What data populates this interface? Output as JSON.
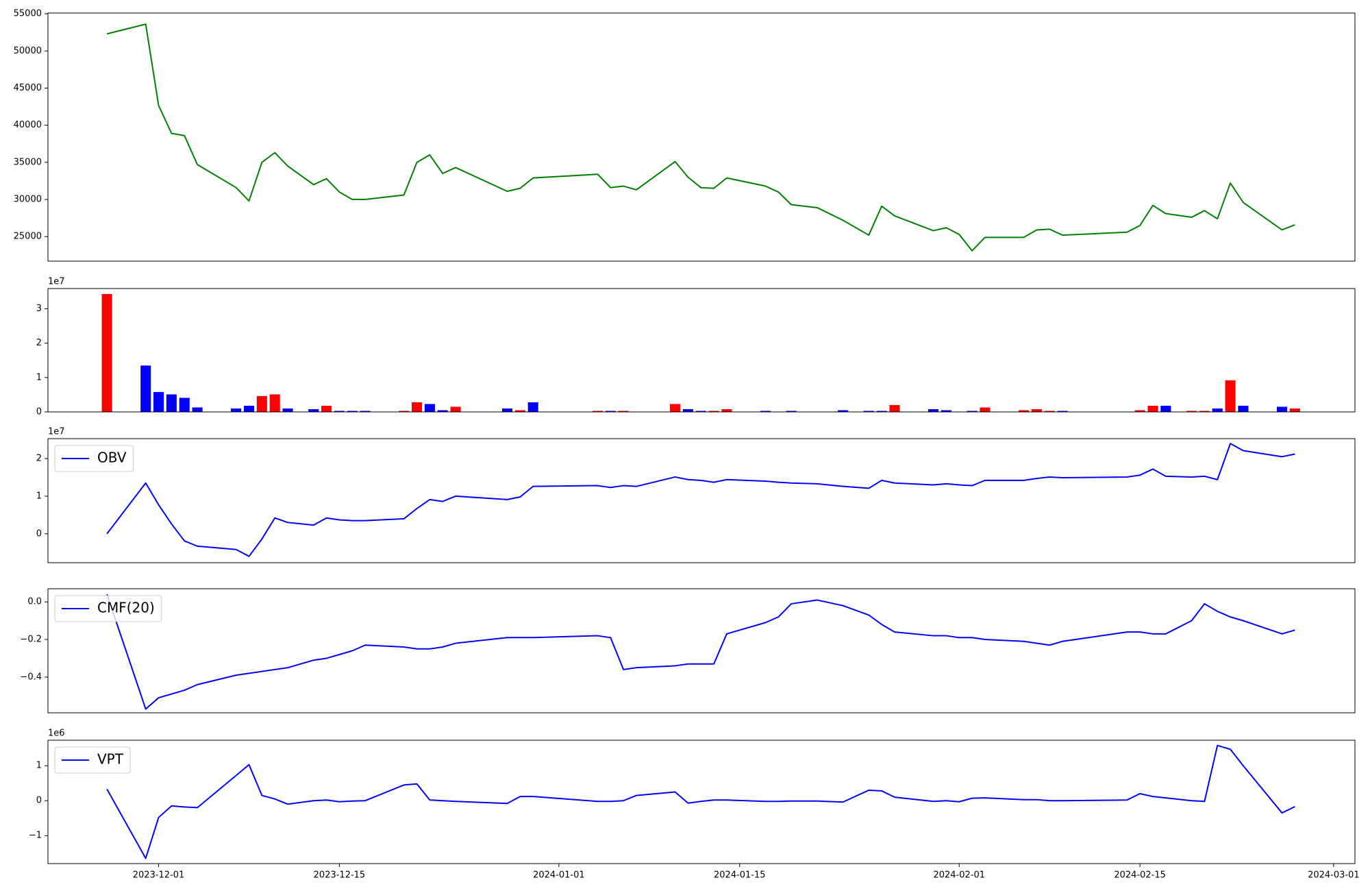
{
  "chart_data": [
    {
      "type": "line",
      "x": [
        "2023-11-27",
        "2023-11-30",
        "2023-12-01",
        "2023-12-02",
        "2023-12-03",
        "2023-12-04",
        "2023-12-07",
        "2023-12-08",
        "2023-12-09",
        "2023-12-10",
        "2023-12-11",
        "2023-12-13",
        "2023-12-14",
        "2023-12-15",
        "2023-12-16",
        "2023-12-17",
        "2023-12-20",
        "2023-12-21",
        "2023-12-22",
        "2023-12-23",
        "2023-12-24",
        "2023-12-28",
        "2023-12-29",
        "2023-12-30",
        "2024-01-04",
        "2024-01-05",
        "2024-01-06",
        "2024-01-07",
        "2024-01-10",
        "2024-01-11",
        "2024-01-12",
        "2024-01-13",
        "2024-01-14",
        "2024-01-17",
        "2024-01-18",
        "2024-01-19",
        "2024-01-21",
        "2024-01-23",
        "2024-01-25",
        "2024-01-26",
        "2024-01-27",
        "2024-01-30",
        "2024-01-31",
        "2024-02-01",
        "2024-02-02",
        "2024-02-03",
        "2024-02-06",
        "2024-02-07",
        "2024-02-08",
        "2024-02-09",
        "2024-02-14",
        "2024-02-15",
        "2024-02-16",
        "2024-02-17",
        "2024-02-19",
        "2024-02-20",
        "2024-02-21",
        "2024-02-22",
        "2024-02-23",
        "2024-02-26",
        "2024-02-27"
      ],
      "series": [
        {
          "color": "#008000",
          "values": [
            52300,
            53600,
            42650,
            38900,
            38600,
            34700,
            31600,
            29800,
            35000,
            36300,
            34500,
            32000,
            32800,
            31000,
            30000,
            30000,
            30600,
            35000,
            36000,
            33500,
            34300,
            31100,
            31500,
            32900,
            33400,
            31600,
            31800,
            31300,
            35100,
            33000,
            31600,
            31500,
            32900,
            31800,
            31000,
            29300,
            28900,
            27200,
            25200,
            29100,
            27800,
            25800,
            26200,
            25300,
            23100,
            24900,
            24900,
            25900,
            26000,
            25200,
            25600,
            26500,
            29200,
            28100,
            27600,
            28500,
            27400,
            32200,
            29600,
            25900,
            26600
          ]
        }
      ],
      "xlim": [
        "2023-11-22T10:19",
        "2024-03-02T15:36"
      ],
      "ylim": [
        21700,
        55100
      ],
      "yticks": [
        25000,
        30000,
        35000,
        40000,
        45000,
        50000,
        55000
      ]
    },
    {
      "type": "bar",
      "x": [
        "2023-11-27",
        "2023-11-30",
        "2023-12-01",
        "2023-12-02",
        "2023-12-03",
        "2023-12-04",
        "2023-12-07",
        "2023-12-08",
        "2023-12-09",
        "2023-12-10",
        "2023-12-11",
        "2023-12-13",
        "2023-12-14",
        "2023-12-15",
        "2023-12-16",
        "2023-12-17",
        "2023-12-20",
        "2023-12-21",
        "2023-12-22",
        "2023-12-23",
        "2023-12-24",
        "2023-12-28",
        "2023-12-29",
        "2023-12-30",
        "2024-01-04",
        "2024-01-05",
        "2024-01-06",
        "2024-01-07",
        "2024-01-10",
        "2024-01-11",
        "2024-01-12",
        "2024-01-13",
        "2024-01-14",
        "2024-01-17",
        "2024-01-18",
        "2024-01-19",
        "2024-01-21",
        "2024-01-23",
        "2024-01-25",
        "2024-01-26",
        "2024-01-27",
        "2024-01-30",
        "2024-01-31",
        "2024-02-01",
        "2024-02-02",
        "2024-02-03",
        "2024-02-06",
        "2024-02-07",
        "2024-02-08",
        "2024-02-09",
        "2024-02-14",
        "2024-02-15",
        "2024-02-16",
        "2024-02-17",
        "2024-02-19",
        "2024-02-20",
        "2024-02-21",
        "2024-02-22",
        "2024-02-23",
        "2024-02-26",
        "2024-02-27"
      ],
      "series": [
        {
          "values": [
            3.43,
            1.35,
            0.58,
            0.51,
            0.41,
            0.13,
            0.1,
            0.18,
            0.46,
            0.51,
            0.1,
            0.08,
            0.18,
            0.03,
            0.03,
            0.03,
            0.03,
            0.28,
            0.23,
            0.05,
            0.15,
            0.1,
            0.05,
            0.28,
            0.03,
            0.03,
            0.03,
            0.01,
            0.23,
            0.08,
            0.03,
            0.03,
            0.08,
            0.03,
            0.01,
            0.03,
            0.01,
            0.05,
            0.03,
            0.03,
            0.2,
            0.08,
            0.05,
            0.01,
            0.03,
            0.13,
            0.05,
            0.08,
            0.03,
            0.03,
            0.01,
            0.05,
            0.18,
            0.18,
            0.03,
            0.03,
            0.1,
            0.92,
            0.18,
            0.15,
            0.1
          ],
          "colors": [
            "#ff0000",
            "#0000ff",
            "#0000ff",
            "#0000ff",
            "#0000ff",
            "#0000ff",
            "#0000ff",
            "#0000ff",
            "#ff0000",
            "#ff0000",
            "#0000ff",
            "#0000ff",
            "#ff0000",
            "#0000ff",
            "#0000ff",
            "#0000ff",
            "#ff0000",
            "#ff0000",
            "#0000ff",
            "#0000ff",
            "#ff0000",
            "#0000ff",
            "#ff0000",
            "#0000ff",
            "#ff0000",
            "#0000ff",
            "#ff0000",
            "#0000ff",
            "#ff0000",
            "#0000ff",
            "#0000ff",
            "#ff0000",
            "#ff0000",
            "#0000ff",
            "#0000ff",
            "#0000ff",
            "#0000ff",
            "#0000ff",
            "#0000ff",
            "#0000ff",
            "#ff0000",
            "#0000ff",
            "#0000ff",
            "#ff0000",
            "#0000ff",
            "#ff0000",
            "#ff0000",
            "#ff0000",
            "#ff0000",
            "#0000ff",
            "#ff0000",
            "#ff0000",
            "#ff0000",
            "#0000ff",
            "#ff0000",
            "#ff0000",
            "#0000ff",
            "#ff0000",
            "#0000ff",
            "#0000ff",
            "#ff0000"
          ]
        }
      ],
      "xlim": [
        "2023-11-22T10:19",
        "2024-03-02T15:36"
      ],
      "ylim": [
        0,
        3.59
      ],
      "yticks": [
        0,
        1,
        2,
        3
      ],
      "offset_text": "1e7"
    },
    {
      "type": "line",
      "x": [
        "2023-11-27",
        "2023-11-30",
        "2023-12-01",
        "2023-12-02",
        "2023-12-03",
        "2023-12-04",
        "2023-12-07",
        "2023-12-08",
        "2023-12-09",
        "2023-12-10",
        "2023-12-11",
        "2023-12-13",
        "2023-12-14",
        "2023-12-15",
        "2023-12-16",
        "2023-12-17",
        "2023-12-20",
        "2023-12-21",
        "2023-12-22",
        "2023-12-23",
        "2023-12-24",
        "2023-12-28",
        "2023-12-29",
        "2023-12-30",
        "2024-01-04",
        "2024-01-05",
        "2024-01-06",
        "2024-01-07",
        "2024-01-10",
        "2024-01-11",
        "2024-01-12",
        "2024-01-13",
        "2024-01-14",
        "2024-01-17",
        "2024-01-18",
        "2024-01-19",
        "2024-01-21",
        "2024-01-23",
        "2024-01-25",
        "2024-01-26",
        "2024-01-27",
        "2024-01-30",
        "2024-01-31",
        "2024-02-01",
        "2024-02-02",
        "2024-02-03",
        "2024-02-06",
        "2024-02-07",
        "2024-02-08",
        "2024-02-09",
        "2024-02-14",
        "2024-02-15",
        "2024-02-16",
        "2024-02-17",
        "2024-02-19",
        "2024-02-20",
        "2024-02-21",
        "2024-02-22",
        "2024-02-23",
        "2024-02-26",
        "2024-02-27"
      ],
      "series": [
        {
          "name": "OBV",
          "color": "#0000ff",
          "values": [
            0,
            1.35,
            0.77,
            0.26,
            -0.19,
            -0.33,
            -0.42,
            -0.6,
            -0.14,
            0.42,
            0.3,
            0.23,
            0.42,
            0.37,
            0.35,
            0.35,
            0.4,
            0.67,
            0.91,
            0.86,
            1.0,
            0.91,
            0.98,
            1.26,
            1.28,
            1.23,
            1.28,
            1.26,
            1.51,
            1.44,
            1.42,
            1.37,
            1.44,
            1.4,
            1.37,
            1.35,
            1.33,
            1.26,
            1.21,
            1.42,
            1.35,
            1.3,
            1.33,
            1.3,
            1.28,
            1.42,
            1.42,
            1.47,
            1.51,
            1.49,
            1.51,
            1.56,
            1.72,
            1.53,
            1.51,
            1.53,
            1.44,
            2.4,
            2.21,
            2.05,
            2.12
          ]
        }
      ],
      "xlim": [
        "2023-11-22T10:19",
        "2024-03-02T15:36"
      ],
      "ylim": [
        -0.77,
        2.53
      ],
      "yticks": [
        0,
        1,
        2
      ],
      "offset_text": "1e7",
      "legend": "upper left"
    },
    {
      "type": "line",
      "x": [
        "2023-11-27",
        "2023-11-30",
        "2023-12-01",
        "2023-12-02",
        "2023-12-03",
        "2023-12-04",
        "2023-12-07",
        "2023-12-08",
        "2023-12-09",
        "2023-12-10",
        "2023-12-11",
        "2023-12-13",
        "2023-12-14",
        "2023-12-15",
        "2023-12-16",
        "2023-12-17",
        "2023-12-20",
        "2023-12-21",
        "2023-12-22",
        "2023-12-23",
        "2023-12-24",
        "2023-12-28",
        "2023-12-29",
        "2023-12-30",
        "2024-01-04",
        "2024-01-05",
        "2024-01-06",
        "2024-01-07",
        "2024-01-10",
        "2024-01-11",
        "2024-01-12",
        "2024-01-13",
        "2024-01-14",
        "2024-01-17",
        "2024-01-18",
        "2024-01-19",
        "2024-01-21",
        "2024-01-23",
        "2024-01-25",
        "2024-01-26",
        "2024-01-27",
        "2024-01-30",
        "2024-01-31",
        "2024-02-01",
        "2024-02-02",
        "2024-02-03",
        "2024-02-06",
        "2024-02-07",
        "2024-02-08",
        "2024-02-09",
        "2024-02-14",
        "2024-02-15",
        "2024-02-16",
        "2024-02-17",
        "2024-02-19",
        "2024-02-20",
        "2024-02-21",
        "2024-02-22",
        "2024-02-23",
        "2024-02-26",
        "2024-02-27"
      ],
      "series": [
        {
          "name": "CMF(20)",
          "color": "#0000ff",
          "values": [
            0.04,
            -0.57,
            -0.51,
            -0.49,
            -0.47,
            -0.44,
            -0.39,
            -0.38,
            -0.37,
            -0.36,
            -0.35,
            -0.31,
            -0.3,
            -0.28,
            -0.26,
            -0.23,
            -0.24,
            -0.25,
            -0.25,
            -0.24,
            -0.22,
            -0.19,
            -0.19,
            -0.19,
            -0.18,
            -0.19,
            -0.36,
            -0.35,
            -0.34,
            -0.33,
            -0.33,
            -0.33,
            -0.17,
            -0.11,
            -0.08,
            -0.01,
            0.01,
            -0.02,
            -0.07,
            -0.12,
            -0.16,
            -0.18,
            -0.18,
            -0.19,
            -0.19,
            -0.2,
            -0.21,
            -0.22,
            -0.23,
            -0.21,
            -0.16,
            -0.16,
            -0.17,
            -0.17,
            -0.1,
            -0.01,
            -0.05,
            -0.08,
            -0.1,
            -0.17,
            -0.15
          ]
        }
      ],
      "xlim": [
        "2023-11-22T10:19",
        "2024-03-02T15:36"
      ],
      "ylim": [
        -0.59,
        0.07
      ],
      "yticks": [
        {
          "value": -0.4,
          "label": "−0.4"
        },
        {
          "value": -0.2,
          "label": "−0.2"
        },
        {
          "value": 0,
          "label": "0.0"
        }
      ],
      "legend": "upper left"
    },
    {
      "type": "line",
      "x": [
        "2023-11-27",
        "2023-11-30",
        "2023-12-01",
        "2023-12-02",
        "2023-12-03",
        "2023-12-04",
        "2023-12-07",
        "2023-12-08",
        "2023-12-09",
        "2023-12-10",
        "2023-12-11",
        "2023-12-13",
        "2023-12-14",
        "2023-12-15",
        "2023-12-16",
        "2023-12-17",
        "2023-12-20",
        "2023-12-21",
        "2023-12-22",
        "2023-12-23",
        "2023-12-24",
        "2023-12-28",
        "2023-12-29",
        "2023-12-30",
        "2024-01-04",
        "2024-01-05",
        "2024-01-06",
        "2024-01-07",
        "2024-01-10",
        "2024-01-11",
        "2024-01-12",
        "2024-01-13",
        "2024-01-14",
        "2024-01-17",
        "2024-01-18",
        "2024-01-19",
        "2024-01-21",
        "2024-01-23",
        "2024-01-25",
        "2024-01-26",
        "2024-01-27",
        "2024-01-30",
        "2024-01-31",
        "2024-02-01",
        "2024-02-02",
        "2024-02-03",
        "2024-02-06",
        "2024-02-07",
        "2024-02-08",
        "2024-02-09",
        "2024-02-14",
        "2024-02-15",
        "2024-02-16",
        "2024-02-17",
        "2024-02-19",
        "2024-02-20",
        "2024-02-21",
        "2024-02-22",
        "2024-02-23",
        "2024-02-26",
        "2024-02-27"
      ],
      "series": [
        {
          "name": "VPT",
          "color": "#0000ff",
          "values": [
            0.33,
            -1.65,
            -0.48,
            -0.15,
            -0.18,
            -0.2,
            0.72,
            1.03,
            0.15,
            0.05,
            -0.1,
            0.0,
            0.02,
            -0.03,
            -0.01,
            0.0,
            0.45,
            0.48,
            0.02,
            0.0,
            -0.02,
            -0.08,
            0.12,
            0.12,
            -0.02,
            -0.02,
            0.0,
            0.15,
            0.25,
            -0.07,
            -0.02,
            0.02,
            0.02,
            -0.02,
            -0.02,
            -0.01,
            -0.01,
            -0.04,
            0.3,
            0.28,
            0.1,
            -0.02,
            0.0,
            -0.03,
            0.07,
            0.08,
            0.03,
            0.03,
            0.0,
            0.0,
            0.02,
            0.2,
            0.12,
            0.08,
            0.0,
            -0.02,
            1.58,
            1.47,
            1.0,
            -0.35,
            -0.17
          ]
        }
      ],
      "xlim": [
        "2023-11-22T10:19",
        "2024-03-02T15:36"
      ],
      "xticks": [
        "2023-12-01",
        "2023-12-15",
        "2024-01-01",
        "2024-01-15",
        "2024-02-01",
        "2024-02-15",
        "2024-03-01"
      ],
      "ylim": [
        -1.8,
        1.73
      ],
      "yticks": [
        {
          "value": -1,
          "label": "−1"
        },
        0,
        1
      ],
      "offset_text": "1e6",
      "legend": "upper left"
    }
  ]
}
